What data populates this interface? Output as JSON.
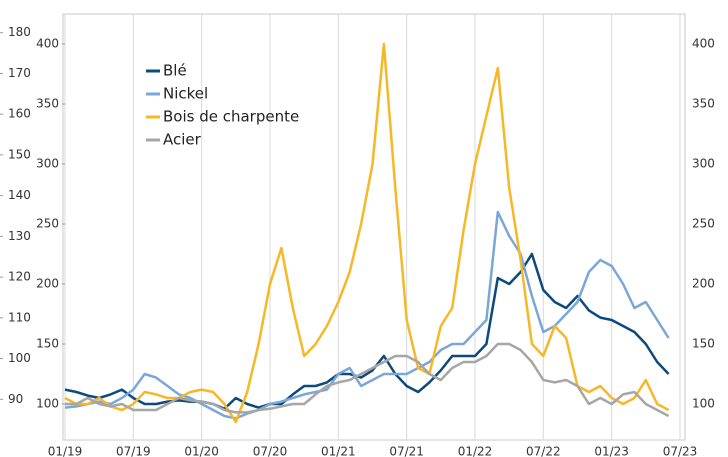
{
  "chart_data": {
    "type": "line",
    "x": [
      "01/19",
      "02/19",
      "03/19",
      "04/19",
      "05/19",
      "06/19",
      "07/19",
      "08/19",
      "09/19",
      "10/19",
      "11/19",
      "12/19",
      "01/20",
      "02/20",
      "03/20",
      "04/20",
      "05/20",
      "06/20",
      "07/20",
      "08/20",
      "09/20",
      "10/20",
      "11/20",
      "12/20",
      "01/21",
      "02/21",
      "03/21",
      "04/21",
      "05/21",
      "06/21",
      "07/21",
      "08/21",
      "09/21",
      "10/21",
      "11/21",
      "12/21",
      "01/22",
      "02/22",
      "03/22",
      "04/22",
      "05/22",
      "06/22",
      "07/22",
      "08/22",
      "09/22",
      "10/22",
      "11/22",
      "12/22",
      "01/23",
      "02/23",
      "03/23",
      "04/23",
      "05/23",
      "06/23"
    ],
    "series": [
      {
        "name": "Blé",
        "color": "#0d4a7c",
        "values": [
          112,
          110,
          107,
          105,
          108,
          112,
          105,
          100,
          100,
          102,
          103,
          102,
          102,
          100,
          96,
          105,
          100,
          97,
          100,
          100,
          108,
          115,
          115,
          118,
          125,
          125,
          122,
          128,
          140,
          125,
          115,
          110,
          118,
          128,
          140,
          140,
          140,
          150,
          205,
          200,
          210,
          225,
          195,
          185,
          180,
          190,
          178,
          172,
          170,
          165,
          160,
          150,
          135,
          125
        ]
      },
      {
        "name": "Nickel",
        "color": "#7ba7d8",
        "values": [
          97,
          98,
          100,
          102,
          100,
          105,
          112,
          125,
          122,
          115,
          108,
          105,
          100,
          95,
          90,
          88,
          92,
          95,
          100,
          102,
          105,
          108,
          110,
          112,
          125,
          130,
          115,
          120,
          125,
          125,
          125,
          130,
          135,
          145,
          150,
          150,
          160,
          170,
          260,
          240,
          225,
          190,
          160,
          165,
          175,
          185,
          210,
          220,
          215,
          200,
          180,
          185,
          170,
          155
        ]
      },
      {
        "name": "Bois de charpente",
        "color": "#f6b826",
        "values": [
          105,
          100,
          100,
          105,
          98,
          95,
          100,
          110,
          108,
          105,
          105,
          110,
          112,
          110,
          100,
          85,
          110,
          150,
          200,
          230,
          180,
          140,
          150,
          165,
          185,
          210,
          250,
          300,
          400,
          280,
          170,
          130,
          125,
          165,
          180,
          245,
          300,
          340,
          380,
          280,
          220,
          150,
          140,
          165,
          155,
          115,
          110,
          115,
          105,
          100,
          105,
          120,
          100,
          95
        ]
      },
      {
        "name": "Acier",
        "color": "#a6a6a6",
        "values": [
          100,
          100,
          105,
          100,
          98,
          100,
          95,
          95,
          95,
          100,
          105,
          103,
          102,
          100,
          95,
          93,
          93,
          95,
          96,
          98,
          100,
          100,
          108,
          115,
          118,
          120,
          125,
          130,
          135,
          140,
          140,
          135,
          125,
          120,
          130,
          135,
          135,
          140,
          150,
          150,
          145,
          135,
          120,
          118,
          120,
          115,
          100,
          105,
          100,
          108,
          110,
          100,
          95,
          90
        ]
      }
    ],
    "xlim": [
      "01/19",
      "07/23"
    ],
    "xticks": [
      "01/19",
      "07/19",
      "01/20",
      "07/20",
      "01/21",
      "07/21",
      "01/22",
      "07/22",
      "01/23",
      "07/23"
    ],
    "ylim": [
      70,
      425
    ],
    "yticks": [
      100,
      150,
      200,
      250,
      300,
      350,
      400
    ],
    "y3lim": [
      80,
      184.6
    ],
    "y3ticks": [
      90,
      100,
      110,
      120,
      130,
      140,
      150,
      160,
      170,
      180
    ],
    "grid": "x"
  }
}
